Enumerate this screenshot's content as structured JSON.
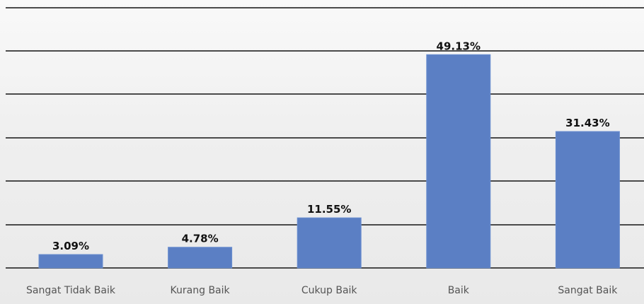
{
  "chart_data": {
    "type": "bar",
    "categories": [
      "Sangat Tidak Baik",
      "Kurang Baik",
      "Cukup Baik",
      "Baik",
      "Sangat Baik"
    ],
    "values": [
      3.09,
      4.78,
      11.55,
      49.13,
      31.43
    ],
    "data_labels": [
      "3.09%",
      "4.78%",
      "11.55%",
      "49.13%",
      "31.43%"
    ],
    "ylim": [
      0,
      60
    ],
    "gridline_values": [
      0,
      10,
      20,
      30,
      40,
      50,
      60
    ],
    "grid": true,
    "legend": "none",
    "bar_color": "#5b7fc4",
    "gridline_color": "#4a4a4a"
  }
}
